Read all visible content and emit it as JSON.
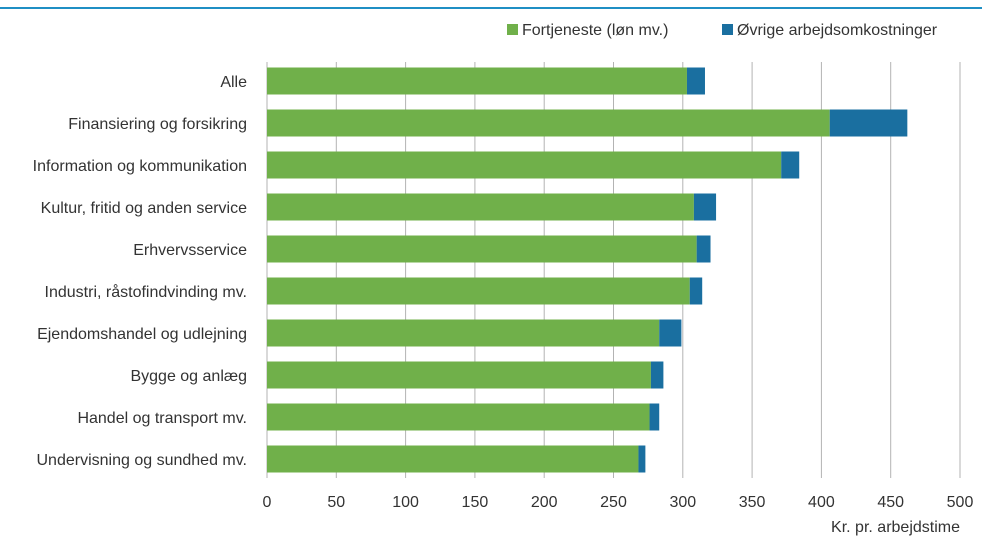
{
  "colors": {
    "fortjeneste": "#70b04a",
    "ovrige": "#1a6fa0",
    "gridline": "#b3b3b3",
    "top_rule": "#1f8fc4"
  },
  "chart_data": {
    "type": "bar",
    "orientation": "horizontal",
    "stacked": true,
    "title": "",
    "xlabel": "Kr. pr. arbejdstime",
    "ylabel": "",
    "xlim": [
      0,
      500
    ],
    "x_ticks": [
      0,
      50,
      100,
      150,
      200,
      250,
      300,
      350,
      400,
      450,
      500
    ],
    "grid": "vertical",
    "legend_position": "top-right",
    "categories": [
      "Alle",
      "Finansiering og forsikring",
      "Information og kommunikation",
      "Kultur, fritid og anden service",
      "Erhvervsservice",
      "Industri, råstofindvinding mv.",
      "Ejendomshandel og udlejning",
      "Bygge og anlæg",
      "Handel og transport mv.",
      "Undervisning og sundhed mv."
    ],
    "series": [
      {
        "name": "Fortjeneste (løn mv.)",
        "values": [
          303,
          406,
          371,
          308,
          310,
          305,
          283,
          277,
          276,
          268
        ]
      },
      {
        "name": "Øvrige arbejdsomkostninger",
        "values": [
          13,
          56,
          13,
          16,
          10,
          9,
          16,
          9,
          7,
          5
        ]
      }
    ]
  }
}
